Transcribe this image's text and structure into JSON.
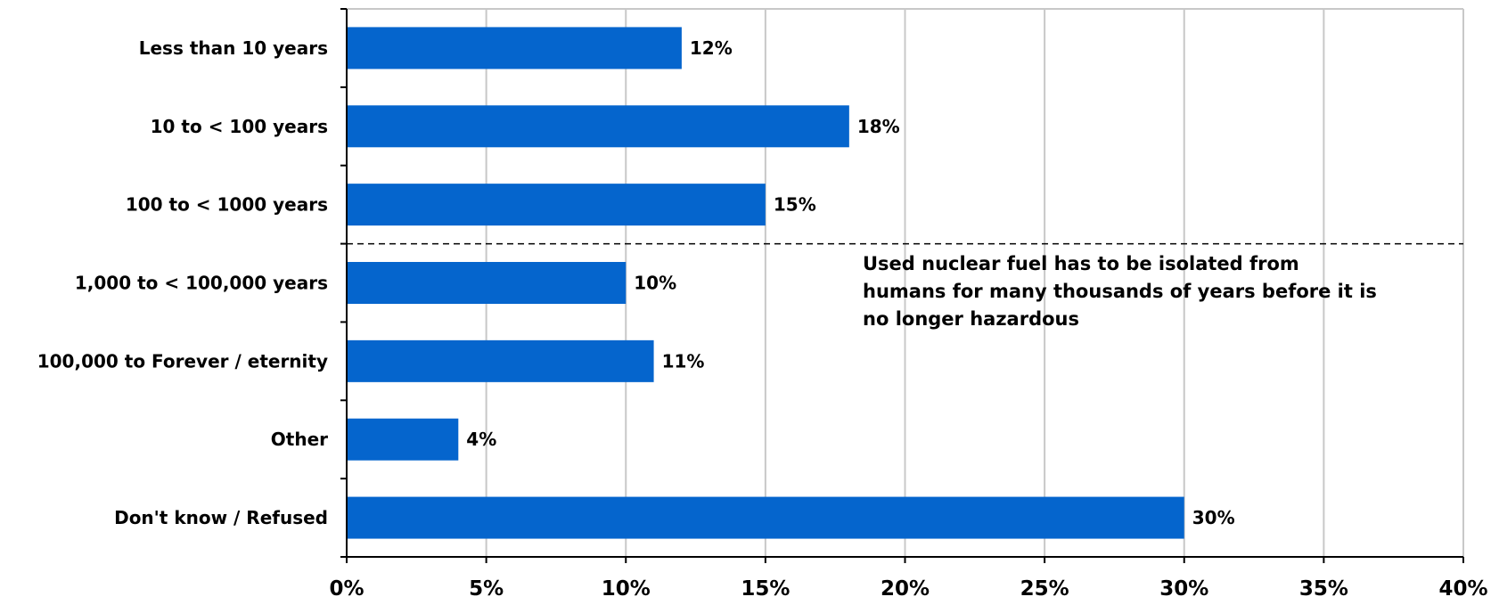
{
  "chart_data": {
    "type": "bar",
    "orientation": "horizontal",
    "categories": [
      "Less than 10 years",
      "10 to < 100 years",
      "100 to < 1000 years",
      "1,000 to < 100,000 years",
      "100,000 to Forever / eternity",
      "Other",
      "Don't know / Refused"
    ],
    "values": [
      12,
      18,
      15,
      10,
      11,
      4,
      30
    ],
    "data_labels": [
      "12%",
      "18%",
      "15%",
      "10%",
      "11%",
      "4%",
      "30%"
    ],
    "xlim": [
      0,
      40
    ],
    "x_ticks": [
      0,
      5,
      10,
      15,
      20,
      25,
      30,
      35,
      40
    ],
    "x_tick_labels": [
      "0%",
      "5%",
      "10%",
      "15%",
      "20%",
      "25%",
      "30%",
      "35%",
      "40%"
    ],
    "grid": "vertical",
    "bar_color": "#0565CD",
    "divider_after_category": 3,
    "annotation": [
      "Used nuclear fuel has to be isolated from",
      "humans for many thousands of years before it is",
      "no longer hazardous"
    ]
  }
}
